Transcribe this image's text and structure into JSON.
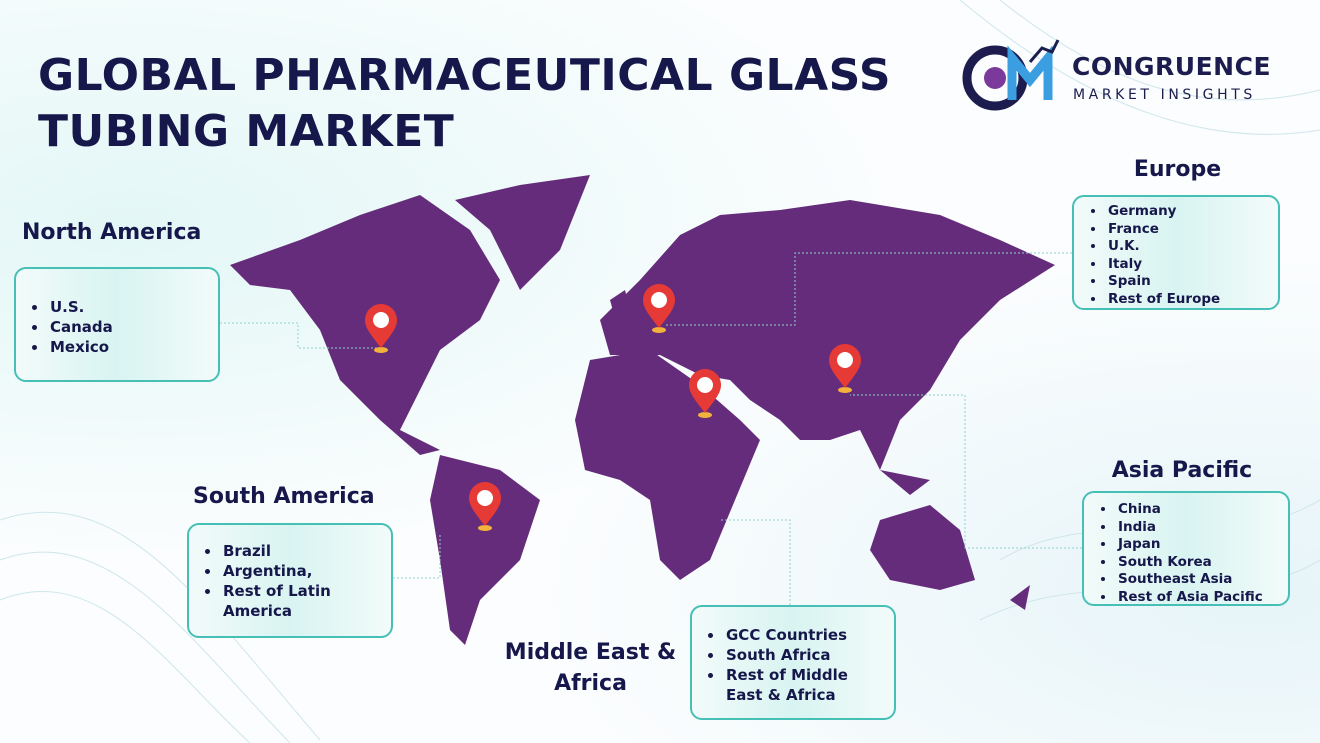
{
  "header": {
    "title_lines": [
      "GLOBAL PHARMACEUTICAL GLASS",
      "TUBING MARKET"
    ],
    "logo": {
      "name": "CONGRUENCE",
      "tagline": "MARKET INSIGHTS"
    }
  },
  "regions": [
    {
      "name": "North America",
      "items": [
        "U.S.",
        "Canada",
        "Mexico"
      ]
    },
    {
      "name": "Europe",
      "items": [
        "Germany",
        "France",
        "U.K.",
        "Italy",
        "Spain",
        "Rest of Europe"
      ]
    },
    {
      "name": "Asia Pacific",
      "items": [
        "China",
        "India",
        "Japan",
        "South Korea",
        "Southeast Asia",
        "Rest of Asia Pacific"
      ]
    },
    {
      "name": "South America",
      "items": [
        "Brazil",
        "Argentina,",
        "Rest of Latin America"
      ]
    },
    {
      "name": "Middle East & Africa",
      "items": [
        "GCC Countries",
        "South Africa",
        "Rest of Middle East & Africa"
      ]
    }
  ]
}
